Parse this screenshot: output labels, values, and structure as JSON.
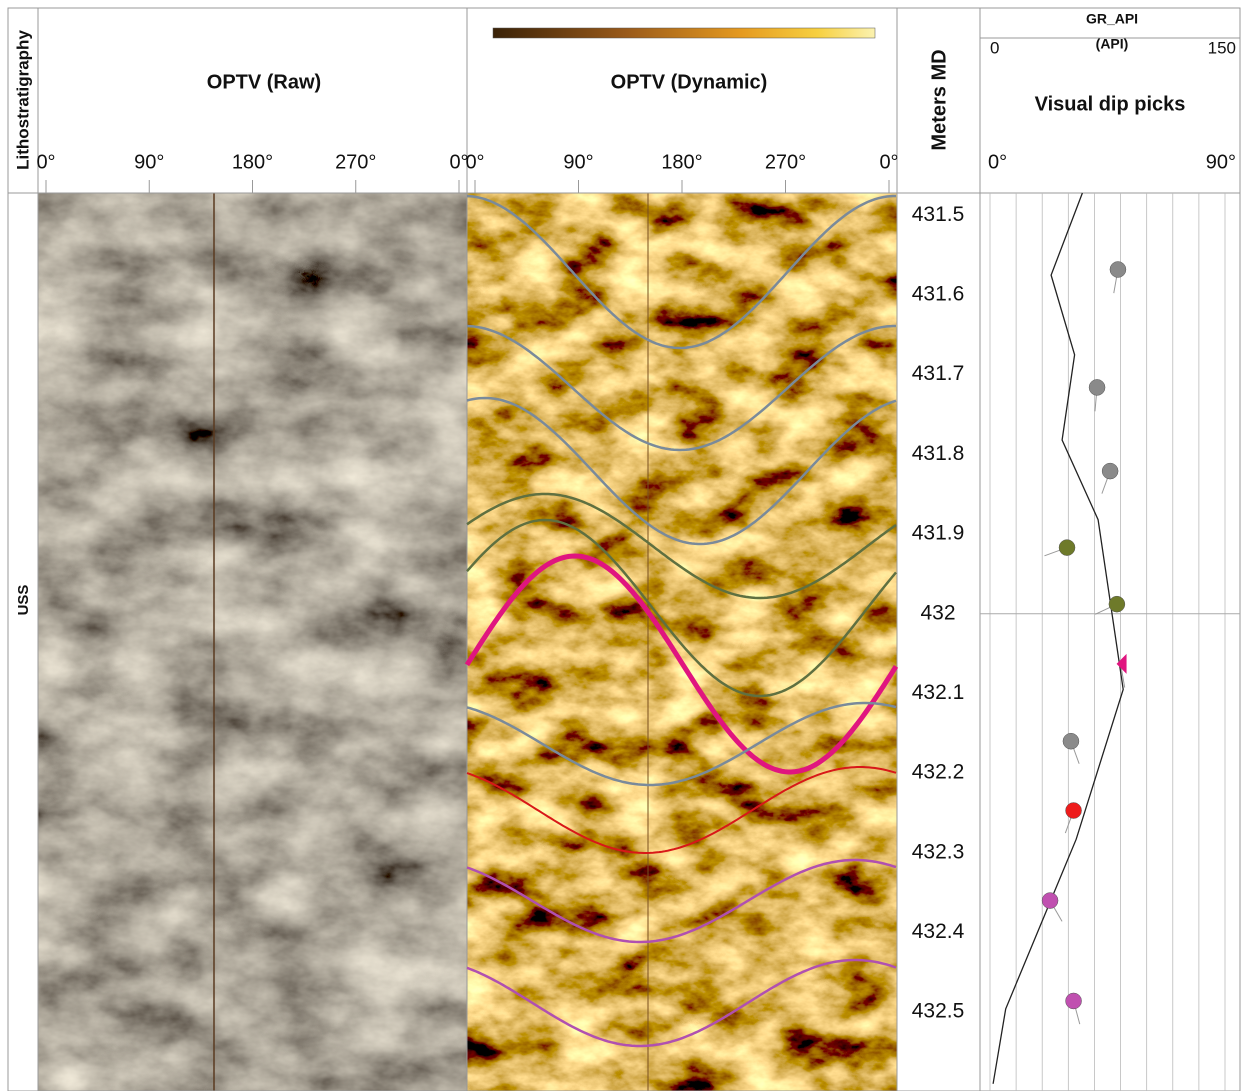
{
  "header": {
    "lithostratigraphy": "Lithostratigraphy",
    "optv_raw": "OPTV (Raw)",
    "optv_dynamic": "OPTV (Dynamic)",
    "depth": "Meters MD",
    "gr_name": "GR_API",
    "gr_unit": "(API)",
    "gr_min_label": "0",
    "gr_max_label": "150",
    "dip_title": "Visual dip picks",
    "dip_min_label": "0°",
    "dip_max_label": "90°"
  },
  "unit": "USS",
  "azimuth_ticks": [
    {
      "value": 0,
      "label": "0°"
    },
    {
      "value": 90,
      "label": "90°"
    },
    {
      "value": 180,
      "label": "180°"
    },
    {
      "value": 270,
      "label": "270°"
    },
    {
      "value": 360,
      "label": "0°"
    }
  ],
  "depth_lim": [
    431.472,
    432.599
  ],
  "depth_ticks": [
    431.5,
    431.6,
    431.7,
    431.8,
    431.9,
    {
      "value": 432,
      "label": "432"
    },
    432.1,
    432.2,
    432.3,
    432.4,
    432.5
  ],
  "dip_lim": [
    0,
    90
  ],
  "gr_lim": [
    0,
    150
  ],
  "gr": {
    "depth": [
      431.472,
      431.575,
      431.675,
      431.782,
      431.882,
      432.095,
      432.283,
      432.496,
      432.59
    ],
    "values": [
      59,
      39,
      54,
      46,
      69,
      85,
      55,
      10,
      2
    ]
  },
  "dip_picks": [
    {
      "depth": 431.568,
      "dip": 49,
      "azimuth": 190,
      "color": "#8a8a8a"
    },
    {
      "depth": 431.716,
      "dip": 41,
      "azimuth": 185,
      "color": "#8a8a8a"
    },
    {
      "depth": 431.821,
      "dip": 46,
      "azimuth": 200,
      "color": "#8a8a8a"
    },
    {
      "depth": 431.917,
      "dip": 29.5,
      "azimuth": 250,
      "color": "#6e7a2a"
    },
    {
      "depth": 431.988,
      "dip": 48.6,
      "azimuth": 245,
      "color": "#6e7a2a"
    },
    {
      "depth": 432.063,
      "dip": 50,
      "azimuth": 170,
      "color": "#e0157f"
    },
    {
      "depth": 432.16,
      "dip": 31,
      "azimuth": 160,
      "color": "#8a8a8a"
    },
    {
      "depth": 432.247,
      "dip": 32,
      "azimuth": 200,
      "color": "#ee1c1c"
    },
    {
      "depth": 432.36,
      "dip": 23,
      "azimuth": 150,
      "color": "#c050b0"
    },
    {
      "depth": 432.486,
      "dip": 32,
      "azimuth": 165,
      "color": "#c050b0"
    }
  ]
}
